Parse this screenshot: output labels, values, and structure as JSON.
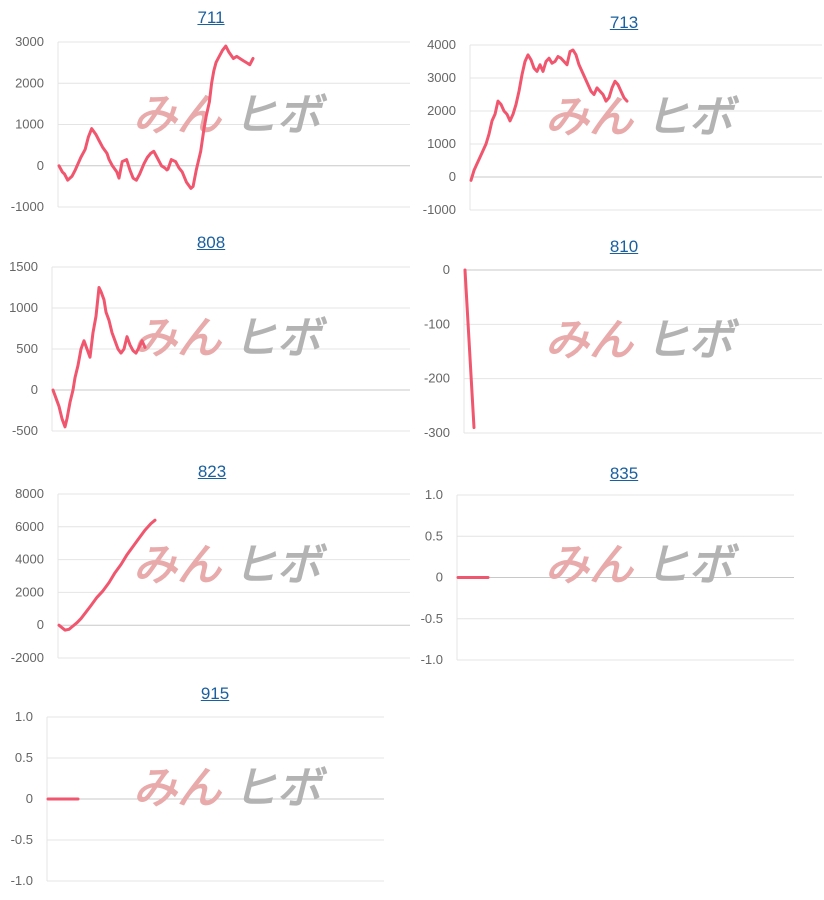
{
  "watermark": {
    "left_text": "みん",
    "right_text": "ヒボ",
    "left_color": "#e8aaaa",
    "right_color": "#b3b3b3"
  },
  "colors": {
    "line": "#f0566e",
    "grid": "#e4e4e4",
    "zero_axis": "#c8c8c8",
    "title": "#1a5f9e",
    "tick": "#666666"
  },
  "chart_data": [
    {
      "type": "line",
      "title": "711",
      "ylim": [
        -1000,
        3000
      ],
      "yticks": [
        "3000",
        "2000",
        "1000",
        "0",
        "-1000"
      ],
      "ytick_values": [
        3000,
        2000,
        1000,
        0,
        -1000
      ],
      "x": [
        0,
        3,
        5,
        8,
        12,
        15,
        20,
        24,
        27,
        30,
        34,
        37,
        40,
        44,
        46,
        49,
        53,
        55,
        58,
        62,
        65,
        68,
        71,
        74,
        78,
        81,
        84,
        87,
        90,
        94,
        97,
        99,
        100,
        103,
        107,
        110,
        113,
        117,
        121,
        123,
        126,
        130,
        133,
        135,
        138,
        140,
        142,
        144,
        146,
        150,
        153,
        156,
        160,
        163,
        166,
        169,
        172,
        175,
        178
      ],
      "y": [
        0,
        -150,
        -200,
        -350,
        -250,
        -100,
        200,
        400,
        700,
        900,
        750,
        600,
        450,
        300,
        150,
        0,
        -150,
        -300,
        100,
        150,
        -100,
        -300,
        -350,
        -200,
        50,
        200,
        300,
        350,
        200,
        0,
        -50,
        -100,
        -80,
        150,
        100,
        -50,
        -150,
        -400,
        -550,
        -500,
        -100,
        350,
        900,
        1200,
        1550,
        2000,
        2300,
        2500,
        2600,
        2800,
        2900,
        2750,
        2600,
        2650,
        2600,
        2550,
        2500,
        2450,
        2600
      ],
      "series_end_index": 58
    },
    {
      "type": "line",
      "title": "713",
      "ylim": [
        -1000,
        4000
      ],
      "yticks": [
        "4000",
        "3000",
        "2000",
        "1000",
        "0",
        "-1000"
      ],
      "ytick_values": [
        4000,
        3000,
        2000,
        1000,
        0,
        -1000
      ],
      "x": [
        0,
        3,
        6,
        9,
        12,
        15,
        18,
        21,
        24,
        27,
        30,
        33,
        36,
        39,
        42,
        45,
        48,
        51,
        54,
        57,
        60,
        63,
        66,
        69,
        72,
        75,
        78,
        81,
        84,
        87,
        90,
        93,
        96,
        99,
        102,
        105,
        108,
        111,
        114,
        117,
        120,
        123,
        126,
        129,
        132,
        135,
        138,
        141,
        144,
        147,
        150,
        153,
        156,
        159,
        162,
        165,
        168,
        171,
        174,
        177,
        180,
        183,
        186,
        189,
        192,
        195,
        198,
        201,
        204,
        207
      ],
      "y": [
        -100,
        200,
        400,
        600,
        800,
        1000,
        1300,
        1700,
        1900,
        2300,
        2200,
        2000,
        1900,
        1700,
        1900,
        2200,
        2600,
        3100,
        3500,
        3700,
        3550,
        3300,
        3200,
        3400,
        3200,
        3500,
        3600,
        3450,
        3500,
        3650,
        3600,
        3500,
        3400,
        3800,
        3850,
        3700,
        3400,
        3200,
        3000,
        2800,
        2600,
        2500,
        2700,
        2600,
        2500,
        2300,
        2400,
        2700,
        2900,
        2800,
        2600,
        2400,
        2300,
        2350,
        2400,
        2400,
        2400,
        2400,
        2400,
        2400,
        2400,
        2400,
        2400,
        2400,
        2400,
        2400,
        2400,
        2400,
        2400,
        2400
      ],
      "series_end_index": 52
    },
    {
      "type": "line",
      "title": "808",
      "ylim": [
        -500,
        1500
      ],
      "yticks": [
        "1500",
        "1000",
        "500",
        "0",
        "-500"
      ],
      "ytick_values": [
        1500,
        1000,
        500,
        0,
        -500
      ],
      "x": [
        0,
        3,
        6,
        9,
        12,
        14,
        17,
        20,
        22,
        25,
        28,
        31,
        34,
        37,
        40,
        43,
        46,
        48,
        51,
        53,
        56,
        59,
        62,
        65,
        68,
        71,
        74,
        77,
        80,
        83,
        86,
        89,
        92,
        95,
        98,
        100
      ],
      "y": [
        0,
        -100,
        -200,
        -350,
        -450,
        -350,
        -150,
        0,
        150,
        300,
        500,
        600,
        500,
        400,
        700,
        900,
        1250,
        1200,
        1100,
        950,
        850,
        700,
        600,
        500,
        450,
        500,
        650,
        550,
        480,
        450,
        520,
        600,
        520,
        480,
        550,
        650
      ],
      "series_end_index": 32
    },
    {
      "type": "line",
      "title": "810",
      "ylim": [
        -300,
        0
      ],
      "yticks": [
        "0",
        "-100",
        "-200",
        "-300"
      ],
      "ytick_values": [
        0,
        -100,
        -200,
        -300
      ],
      "x": [
        0,
        9
      ],
      "y": [
        0,
        -290
      ],
      "series_end_index": 1
    },
    {
      "type": "line",
      "title": "823",
      "ylim": [
        -2000,
        8000
      ],
      "yticks": [
        "8000",
        "6000",
        "4000",
        "2000",
        "0",
        "-2000"
      ],
      "ytick_values": [
        8000,
        6000,
        4000,
        2000,
        0,
        -2000
      ],
      "x": [
        0,
        3,
        6,
        10,
        14,
        18,
        22,
        27,
        32,
        38,
        44,
        50,
        56,
        62,
        68,
        74,
        80,
        86,
        92,
        96
      ],
      "y": [
        0,
        -150,
        -300,
        -250,
        -50,
        150,
        400,
        800,
        1200,
        1700,
        2100,
        2600,
        3200,
        3700,
        4300,
        4800,
        5300,
        5800,
        6200,
        6400
      ],
      "series_end_index": 19
    },
    {
      "type": "line",
      "title": "835",
      "ylim": [
        -1.0,
        1.0
      ],
      "yticks": [
        "1.0",
        "0.5",
        "0",
        "-0.5",
        "-1.0"
      ],
      "ytick_values": [
        1.0,
        0.5,
        0,
        -0.5,
        -1.0
      ],
      "x": [
        0,
        30
      ],
      "y": [
        0,
        0
      ],
      "series_end_index": 1
    },
    {
      "type": "line",
      "title": "915",
      "ylim": [
        -1.0,
        1.0
      ],
      "yticks": [
        "1.0",
        "0.5",
        "0",
        "-0.5",
        "-1.0"
      ],
      "ytick_values": [
        1.0,
        0.5,
        0,
        -0.5,
        -1.0
      ],
      "x": [
        0,
        30
      ],
      "y": [
        0,
        0
      ],
      "series_end_index": 1
    }
  ]
}
